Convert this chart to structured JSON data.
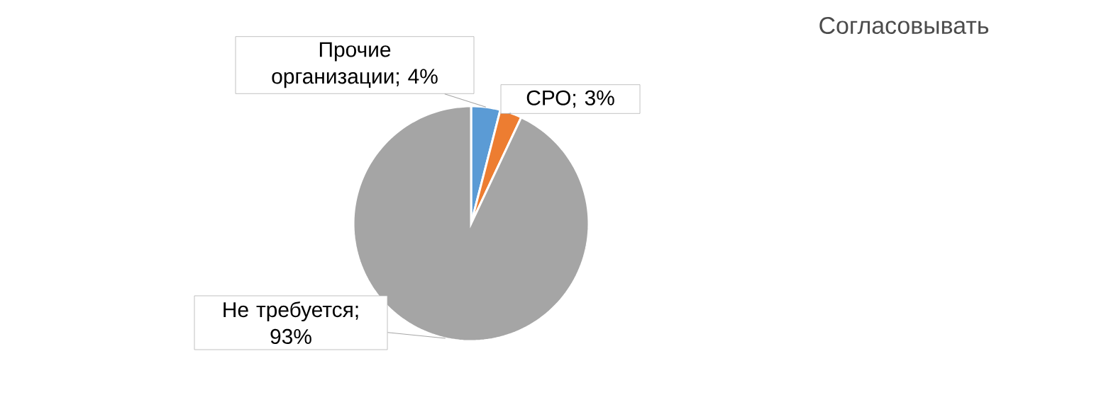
{
  "chart_data": {
    "type": "pie",
    "title": "Согласовывать",
    "categories": [
      "Прочие организации",
      "СРО",
      "Не требуется"
    ],
    "values": [
      4,
      3,
      93
    ],
    "colors": [
      "#5b9bd5",
      "#ed7d31",
      "#a5a5a5"
    ],
    "value_labels": [
      "; 4%",
      "; 3%",
      "; 93%"
    ]
  }
}
